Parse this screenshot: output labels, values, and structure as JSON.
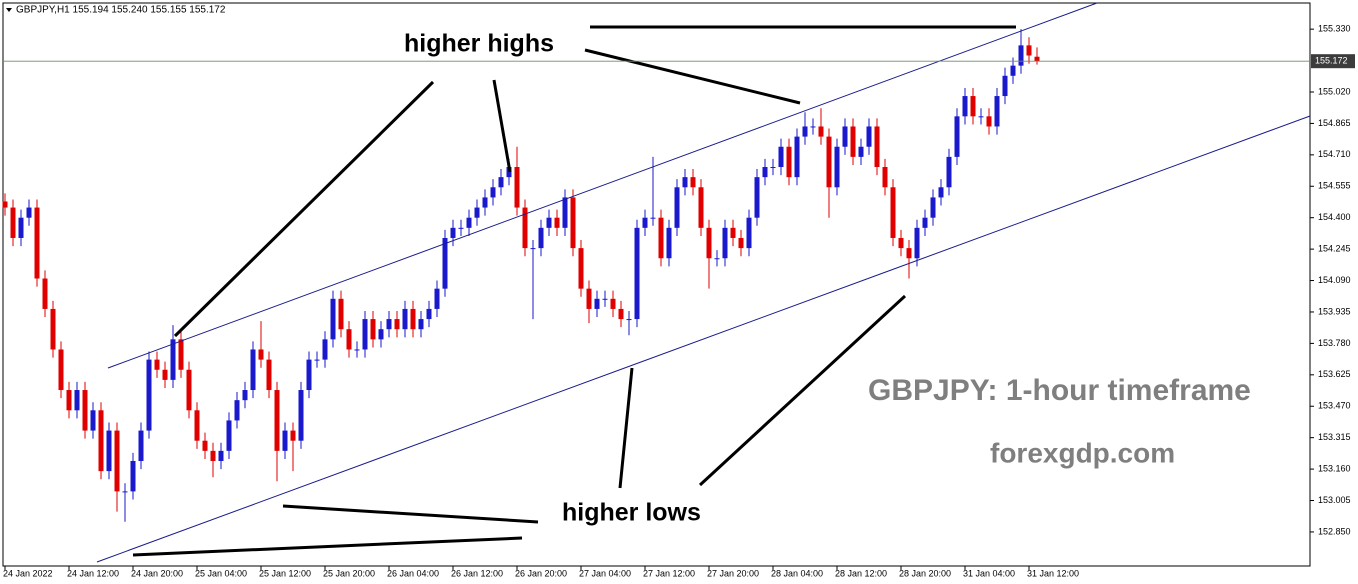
{
  "chart_data": {
    "type": "candlestick",
    "legend_text": "GBPJPY,H1 155.194 155.240 155.155 155.172",
    "annotations": {
      "higher_highs": "higher highs",
      "higher_lows": "higher lows",
      "timeframe": "GBPJPY: 1-hour timeframe",
      "site": "forexgdp.com"
    },
    "up_color": "#1a1acc",
    "down_color": "#e00000",
    "categories": [
      "24 Jan 2022",
      null,
      null,
      null,
      null,
      null,
      null,
      null,
      "24 Jan 12:00",
      null,
      null,
      null,
      null,
      null,
      null,
      null,
      "24 Jan 20:00",
      null,
      null,
      null,
      null,
      null,
      null,
      null,
      "25 Jan 04:00",
      null,
      null,
      null,
      null,
      null,
      null,
      null,
      "25 Jan 12:00",
      null,
      null,
      null,
      null,
      null,
      null,
      null,
      "25 Jan 20:00",
      null,
      null,
      null,
      null,
      null,
      null,
      null,
      "26 Jan 04:00",
      null,
      null,
      null,
      null,
      null,
      null,
      null,
      "26 Jan 12:00",
      null,
      null,
      null,
      null,
      null,
      null,
      null,
      "26 Jan 20:00",
      null,
      null,
      null,
      null,
      null,
      null,
      null,
      "27 Jan 04:00",
      null,
      null,
      null,
      null,
      null,
      null,
      null,
      "27 Jan 12:00",
      null,
      null,
      null,
      null,
      null,
      null,
      null,
      "27 Jan 20:00",
      null,
      null,
      null,
      null,
      null,
      null,
      null,
      "28 Jan 04:00",
      null,
      null,
      null,
      null,
      null,
      null,
      null,
      "28 Jan 12:00",
      null,
      null,
      null,
      null,
      null,
      null,
      null,
      "28 Jan 20:00",
      null,
      null,
      null,
      null,
      null,
      null,
      null,
      "31 Jan 04:00",
      null,
      null,
      null,
      null,
      null,
      null,
      null,
      "31 Jan 12:00",
      null
    ],
    "open": [
      154.48,
      154.45,
      154.3,
      154.4,
      154.45,
      154.1,
      153.95,
      153.75,
      153.55,
      153.45,
      153.55,
      153.35,
      153.45,
      153.15,
      153.35,
      153.05,
      153.05,
      153.2,
      153.35,
      153.7,
      153.65,
      153.6,
      153.8,
      153.65,
      153.45,
      153.3,
      153.25,
      153.2,
      153.25,
      153.4,
      153.5,
      153.55,
      153.75,
      153.7,
      153.55,
      153.25,
      153.35,
      153.3,
      153.55,
      153.7,
      153.7,
      153.8,
      154.0,
      153.85,
      153.75,
      153.75,
      153.9,
      153.8,
      153.85,
      153.9,
      153.85,
      153.95,
      153.85,
      153.9,
      153.95,
      154.05,
      154.3,
      154.35,
      154.35,
      154.4,
      154.45,
      154.5,
      154.55,
      154.6,
      154.65,
      154.45,
      154.25,
      154.25,
      154.35,
      154.4,
      154.35,
      154.5,
      154.25,
      154.05,
      153.95,
      154.0,
      154.0,
      153.95,
      153.9,
      153.9,
      154.35,
      154.4,
      154.4,
      154.2,
      154.35,
      154.55,
      154.6,
      154.55,
      154.35,
      154.2,
      154.2,
      154.35,
      154.3,
      154.25,
      154.4,
      154.6,
      154.65,
      154.65,
      154.75,
      154.6,
      154.8,
      154.85,
      154.85,
      154.8,
      154.55,
      154.75,
      154.85,
      154.7,
      154.75,
      154.85,
      154.65,
      154.55,
      154.3,
      154.25,
      154.2,
      154.35,
      154.4,
      154.5,
      154.55,
      154.7,
      154.9,
      155.0,
      154.9,
      154.9,
      154.85,
      155.0,
      155.1,
      155.15,
      155.25,
      155.194
    ],
    "high": [
      154.52,
      154.49,
      154.44,
      154.49,
      154.49,
      154.14,
      153.99,
      153.79,
      153.59,
      153.59,
      153.59,
      153.49,
      153.49,
      153.39,
      153.39,
      153.09,
      153.24,
      153.39,
      153.74,
      153.74,
      153.69,
      153.87,
      153.84,
      153.69,
      153.49,
      153.34,
      153.29,
      153.29,
      153.44,
      153.54,
      153.59,
      153.79,
      153.89,
      153.74,
      153.59,
      153.39,
      153.39,
      153.59,
      153.74,
      153.74,
      153.84,
      154.04,
      154.04,
      153.89,
      153.79,
      153.94,
      153.94,
      153.89,
      153.94,
      153.94,
      153.99,
      153.99,
      153.94,
      153.99,
      154.09,
      154.34,
      154.39,
      154.39,
      154.44,
      154.49,
      154.54,
      154.59,
      154.64,
      154.69,
      154.75,
      154.49,
      154.29,
      154.39,
      154.44,
      154.44,
      154.54,
      154.54,
      154.29,
      154.09,
      154.04,
      154.04,
      154.04,
      153.99,
      153.94,
      154.39,
      154.44,
      154.7,
      154.44,
      154.39,
      154.59,
      154.64,
      154.64,
      154.59,
      154.39,
      154.24,
      154.39,
      154.39,
      154.34,
      154.44,
      154.64,
      154.69,
      154.69,
      154.79,
      154.79,
      154.84,
      154.92,
      154.89,
      154.94,
      154.84,
      154.79,
      154.89,
      154.89,
      154.79,
      154.89,
      154.89,
      154.69,
      154.59,
      154.34,
      154.29,
      154.39,
      154.44,
      154.54,
      154.59,
      154.74,
      154.94,
      155.04,
      155.04,
      154.94,
      154.94,
      155.04,
      155.14,
      155.19,
      155.33,
      155.29,
      155.24
    ],
    "low": [
      154.41,
      154.26,
      154.26,
      154.36,
      154.06,
      153.91,
      153.71,
      153.51,
      153.41,
      153.41,
      153.31,
      153.31,
      153.11,
      153.11,
      152.95,
      152.9,
      153.01,
      153.16,
      153.31,
      153.61,
      153.56,
      153.56,
      153.61,
      153.41,
      153.26,
      153.21,
      153.12,
      153.16,
      153.21,
      153.36,
      153.46,
      153.51,
      153.66,
      153.51,
      153.1,
      153.21,
      153.15,
      153.26,
      153.51,
      153.66,
      153.66,
      153.76,
      153.81,
      153.71,
      153.71,
      153.71,
      153.76,
      153.76,
      153.81,
      153.81,
      153.81,
      153.81,
      153.81,
      153.86,
      153.91,
      154.01,
      154.26,
      154.31,
      154.31,
      154.36,
      154.41,
      154.46,
      154.51,
      154.56,
      154.41,
      154.21,
      153.9,
      154.21,
      154.31,
      154.31,
      154.31,
      154.21,
      154.01,
      153.88,
      153.91,
      153.96,
      153.91,
      153.86,
      153.82,
      153.86,
      154.31,
      154.36,
      154.16,
      154.16,
      154.31,
      154.51,
      154.51,
      154.31,
      154.05,
      154.16,
      154.16,
      154.26,
      154.21,
      154.21,
      154.36,
      154.56,
      154.61,
      154.61,
      154.56,
      154.56,
      154.76,
      154.81,
      154.76,
      154.4,
      154.51,
      154.71,
      154.66,
      154.66,
      154.71,
      154.61,
      154.51,
      154.26,
      154.21,
      154.1,
      154.16,
      154.31,
      154.36,
      154.46,
      154.51,
      154.66,
      154.86,
      154.86,
      154.86,
      154.81,
      154.81,
      154.96,
      155.06,
      155.11,
      155.16,
      155.155
    ],
    "close": [
      154.45,
      154.3,
      154.4,
      154.45,
      154.1,
      153.95,
      153.75,
      153.55,
      153.45,
      153.55,
      153.35,
      153.45,
      153.15,
      153.35,
      153.05,
      153.05,
      153.2,
      153.35,
      153.7,
      153.65,
      153.6,
      153.8,
      153.65,
      153.45,
      153.3,
      153.25,
      153.2,
      153.25,
      153.4,
      153.5,
      153.55,
      153.75,
      153.7,
      153.55,
      153.25,
      153.35,
      153.3,
      153.55,
      153.7,
      153.7,
      153.8,
      154.0,
      153.85,
      153.75,
      153.75,
      153.9,
      153.8,
      153.85,
      153.9,
      153.85,
      153.95,
      153.85,
      153.9,
      153.95,
      154.05,
      154.3,
      154.35,
      154.35,
      154.4,
      154.45,
      154.5,
      154.55,
      154.6,
      154.65,
      154.45,
      154.25,
      154.25,
      154.35,
      154.4,
      154.35,
      154.5,
      154.25,
      154.05,
      153.95,
      154.0,
      154.0,
      153.95,
      153.9,
      153.9,
      154.35,
      154.4,
      154.4,
      154.2,
      154.35,
      154.55,
      154.6,
      154.55,
      154.35,
      154.2,
      154.2,
      154.35,
      154.3,
      154.25,
      154.4,
      154.6,
      154.65,
      154.65,
      154.75,
      154.6,
      154.8,
      154.85,
      154.85,
      154.8,
      154.55,
      154.75,
      154.85,
      154.7,
      154.75,
      154.85,
      154.65,
      154.55,
      154.3,
      154.25,
      154.2,
      154.35,
      154.4,
      154.5,
      154.55,
      154.7,
      154.9,
      155.0,
      154.9,
      154.9,
      154.85,
      155.0,
      155.1,
      155.15,
      155.25,
      155.2,
      155.172
    ],
    "price_line": {
      "value": 155.172,
      "label": "155.172"
    },
    "ylim": [
      152.682,
      155.459
    ],
    "yticks": [
      {
        "value": 155.33,
        "label": "155.330"
      },
      {
        "value": 155.02,
        "label": "155.020"
      },
      {
        "value": 154.865,
        "label": "154.865"
      },
      {
        "value": 154.71,
        "label": "154.710"
      },
      {
        "value": 154.555,
        "label": "154.555"
      },
      {
        "value": 154.4,
        "label": "154.400"
      },
      {
        "value": 154.245,
        "label": "154.245"
      },
      {
        "value": 154.09,
        "label": "154.090"
      },
      {
        "value": 153.935,
        "label": "153.935"
      },
      {
        "value": 153.78,
        "label": "153.780"
      },
      {
        "value": 153.625,
        "label": "153.625"
      },
      {
        "value": 153.47,
        "label": "153.470"
      },
      {
        "value": 153.315,
        "label": "153.315"
      },
      {
        "value": 153.16,
        "label": "153.160"
      },
      {
        "value": 153.005,
        "label": "153.005"
      },
      {
        "value": 152.85,
        "label": "152.850"
      }
    ],
    "grid": false
  }
}
